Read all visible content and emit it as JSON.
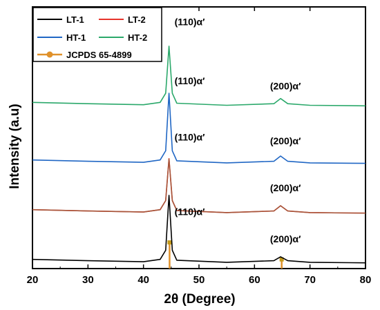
{
  "chart_data": {
    "type": "line",
    "title": "",
    "xlabel": "2θ (Degree)",
    "ylabel": "Intensity (a.u)",
    "xlim": [
      20,
      80
    ],
    "xticks": [
      20,
      30,
      40,
      50,
      60,
      70,
      80
    ],
    "yticks": false,
    "grid": false,
    "legend_position": "top-left",
    "series": [
      {
        "name": "LT-1",
        "color": "#000000",
        "offset": 0.02,
        "x": [
          20,
          30,
          40,
          43,
          44,
          44.6,
          45.2,
          46,
          55,
          63.5,
          64.7,
          66,
          70,
          80
        ],
        "y": [
          0.015,
          0.01,
          0.006,
          0.015,
          0.05,
          0.26,
          0.05,
          0.012,
          0.004,
          0.01,
          0.025,
          0.01,
          0.004,
          0.002
        ]
      },
      {
        "name": "LT-2",
        "color": "#e6332a",
        "offset": 0.21,
        "x": [
          20,
          30,
          40,
          43,
          44,
          44.6,
          45.2,
          46,
          55,
          63.5,
          64.7,
          66,
          70,
          80
        ],
        "y": [
          0.015,
          0.01,
          0.006,
          0.015,
          0.05,
          0.21,
          0.05,
          0.012,
          0.004,
          0.01,
          0.03,
          0.01,
          0.004,
          0.002
        ]
      },
      {
        "name": "HT-1",
        "color": "#1f66c4",
        "offset": 0.4,
        "x": [
          20,
          30,
          40,
          43,
          44,
          44.6,
          45.2,
          46,
          55,
          63.5,
          64.7,
          66,
          70,
          80
        ],
        "y": [
          0.015,
          0.01,
          0.006,
          0.015,
          0.05,
          0.27,
          0.05,
          0.012,
          0.004,
          0.01,
          0.03,
          0.01,
          0.004,
          0.002
        ]
      },
      {
        "name": "HT-2",
        "color": "#2aa86a",
        "offset": 0.62,
        "x": [
          20,
          30,
          40,
          43,
          44,
          44.6,
          45.2,
          46,
          55,
          63.5,
          64.7,
          66,
          70,
          80
        ],
        "y": [
          0.015,
          0.01,
          0.006,
          0.015,
          0.05,
          0.23,
          0.05,
          0.012,
          0.004,
          0.01,
          0.03,
          0.01,
          0.004,
          0.002
        ]
      }
    ],
    "reference": {
      "name": "JCPDS 65-4899",
      "color": "#e0912a",
      "peaks": [
        {
          "x": 44.7,
          "h": 0.1
        },
        {
          "x": 64.9,
          "h": 0.035
        }
      ]
    },
    "annotations": [
      {
        "text": "(110)α′",
        "x": 45.6,
        "y": 0.93
      },
      {
        "text": "(200)α′",
        "x": 62.8,
        "y": 0.685
      },
      {
        "text": "(110)α′",
        "x": 45.6,
        "y": 0.705
      },
      {
        "text": "(200)α′",
        "x": 62.8,
        "y": 0.475
      },
      {
        "text": "(110)α′",
        "x": 45.6,
        "y": 0.49
      },
      {
        "text": "(200)α′",
        "x": 62.8,
        "y": 0.295
      },
      {
        "text": "(110)α′",
        "x": 45.6,
        "y": 0.205
      },
      {
        "text": "(200)α′",
        "x": 62.8,
        "y": 0.1
      }
    ]
  }
}
